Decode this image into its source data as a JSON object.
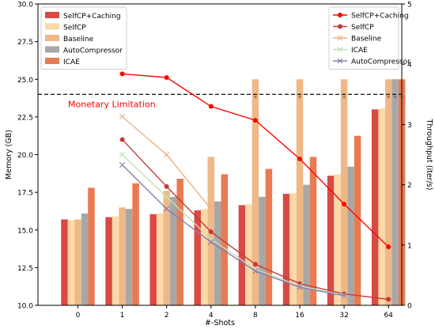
{
  "chart_data": {
    "type": "bar+line",
    "categories": [
      "0",
      "1",
      "2",
      "4",
      "8",
      "16",
      "32",
      "64"
    ],
    "xlabel": "#-Shots",
    "ylabel_left": "Memory (GB)",
    "ylabel_right": "Throughput (iter/s)",
    "ylim_left": [
      10.0,
      30.0
    ],
    "ylim_right": [
      0,
      5
    ],
    "yticks_left": [
      "10.0",
      "12.5",
      "15.0",
      "17.5",
      "20.0",
      "22.5",
      "25.0",
      "27.5",
      "30.0"
    ],
    "yticks_right": [
      "0",
      "1",
      "2",
      "3",
      "4",
      "5"
    ],
    "annotation": {
      "text": "Monetary Limitation",
      "y_value": 24.0,
      "color": "#ff0000"
    },
    "bar_series": [
      {
        "name": "SelfCP+Caching",
        "color": "#d94a45",
        "values": [
          15.7,
          15.85,
          16.05,
          16.3,
          16.65,
          17.4,
          18.6,
          23.0
        ]
      },
      {
        "name": "SelfCP",
        "color": "#fdd9a8",
        "values": [
          15.65,
          15.9,
          16.1,
          16.4,
          16.7,
          17.45,
          18.7,
          23.05
        ]
      },
      {
        "name": "Baseline",
        "color": "#efb987",
        "values": [
          15.7,
          16.5,
          17.6,
          19.85,
          25.0,
          25.0,
          25.0,
          25.0
        ]
      },
      {
        "name": "AutoCompressor",
        "color": "#a7a7a7",
        "values": [
          16.1,
          16.4,
          17.2,
          16.9,
          17.2,
          18.0,
          19.2,
          25.0
        ]
      },
      {
        "name": "ICAE",
        "color": "#e97b52",
        "values": [
          17.8,
          18.1,
          18.4,
          18.7,
          19.05,
          19.85,
          21.25,
          25.0
        ]
      }
    ],
    "oom_markers": [
      {
        "category": "8",
        "series": "Baseline"
      },
      {
        "category": "16",
        "series": "Baseline"
      },
      {
        "category": "32",
        "series": "Baseline"
      },
      {
        "category": "64",
        "series": "Baseline"
      },
      {
        "category": "64",
        "series": "AutoCompressor"
      },
      {
        "category": "64",
        "series": "ICAE"
      }
    ],
    "line_series": [
      {
        "name": "SelfCP+Caching",
        "color": "#ff0000",
        "marker": "o",
        "x": [
          "1",
          "2",
          "4",
          "8",
          "16",
          "32",
          "64"
        ],
        "values": [
          3.84,
          3.78,
          3.3,
          3.07,
          2.43,
          1.68,
          0.97
        ]
      },
      {
        "name": "SelfCP",
        "color": "#c43b38",
        "marker": "o",
        "x": [
          "1",
          "2",
          "4",
          "8",
          "16",
          "32",
          "64"
        ],
        "values": [
          2.75,
          1.97,
          1.22,
          0.68,
          0.36,
          0.19,
          0.1
        ]
      },
      {
        "name": "Baseline",
        "color": "#f2b17e",
        "marker": "x",
        "x": [
          "1",
          "2",
          "4",
          "8",
          "16",
          "32",
          "64"
        ],
        "values": [
          3.13,
          2.5,
          1.6,
          null,
          null,
          null,
          null
        ]
      },
      {
        "name": "ICAE",
        "color": "#c3dfb9",
        "marker": "x",
        "x": [
          "1",
          "2",
          "4",
          "8",
          "16",
          "32",
          "64"
        ],
        "values": [
          2.5,
          1.8,
          1.1,
          0.6,
          0.32,
          0.17,
          null
        ]
      },
      {
        "name": "AutoCompressor",
        "color": "#8a7db5",
        "marker": "x",
        "x": [
          "1",
          "2",
          "4",
          "8",
          "16",
          "32",
          "64"
        ],
        "values": [
          2.33,
          1.6,
          1.05,
          0.57,
          0.3,
          0.16,
          null
        ]
      }
    ],
    "legend_left": [
      "SelfCP+Caching",
      "SelfCP",
      "Baseline",
      "AutoCompressor",
      "ICAE"
    ],
    "legend_right": [
      "SelfCP+Caching",
      "SelfCP",
      "Baseline",
      "ICAE",
      "AutoCompressor"
    ],
    "legend_left_placement": "upper-left",
    "legend_right_placement": "upper-right",
    "grid": false
  }
}
